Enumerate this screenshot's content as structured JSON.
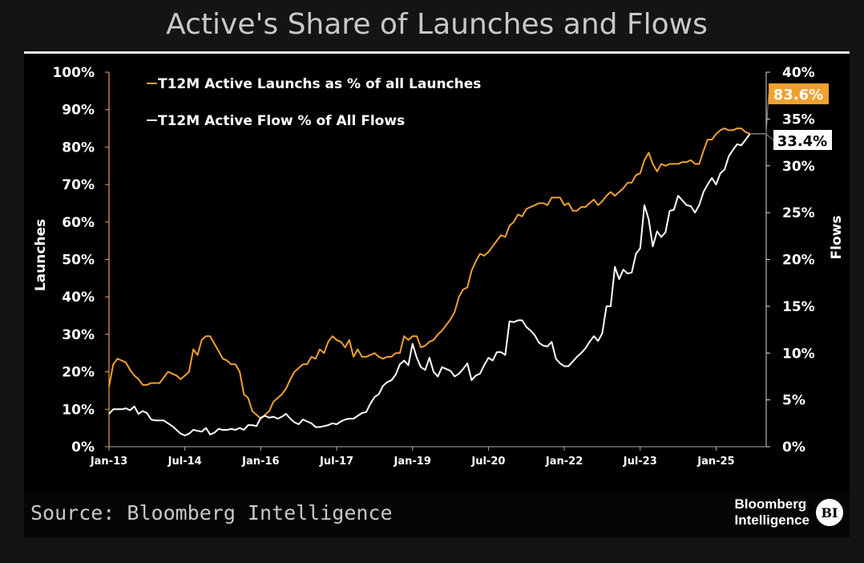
{
  "title": "Active's Share of Launches and Flows",
  "source": "Source: Bloomberg Intelligence",
  "logo": {
    "line1": "Bloomberg",
    "line2": "Intelligence",
    "badge": "BI"
  },
  "chart_data": {
    "type": "line",
    "title": "Active's Share of Launches and Flows",
    "left_axis": {
      "label": "Launches",
      "ylim": [
        0,
        100
      ],
      "ticks": [
        "0%",
        "10%",
        "20%",
        "30%",
        "40%",
        "50%",
        "60%",
        "70%",
        "80%",
        "90%",
        "100%"
      ]
    },
    "right_axis": {
      "label": "Flows",
      "ylim": [
        0,
        40
      ],
      "ticks": [
        "0%",
        "5%",
        "10%",
        "15%",
        "20%",
        "25%",
        "30%",
        "35%",
        "40%"
      ]
    },
    "x_ticks": [
      "Jan-13",
      "Jul-14",
      "Jan-16",
      "Jul-17",
      "Jan-19",
      "Jul-20",
      "Jan-22",
      "Jul-23",
      "Jan-25"
    ],
    "x_start": "2013-01",
    "x_frequency": "monthly",
    "grid": false,
    "legend_position": "top-left",
    "series": [
      {
        "name": "T12M Active Launchs as % of all Launches",
        "axis": "left",
        "color": "#f0a030",
        "last_label": "83.6%",
        "values": [
          16,
          22,
          23.5,
          23,
          22.5,
          20.5,
          19,
          18,
          16.5,
          16.5,
          17,
          17,
          17,
          18.5,
          20,
          19.5,
          19,
          18,
          19,
          20,
          26,
          24.5,
          28.5,
          29.5,
          29.5,
          27.5,
          25.5,
          23.5,
          23,
          22,
          22,
          20,
          14,
          13,
          9.5,
          8.5,
          7.5,
          8.5,
          9.5,
          12,
          13,
          14,
          15.5,
          18,
          20,
          21,
          22,
          22,
          24,
          23.5,
          26,
          25,
          28,
          29.5,
          28.5,
          28,
          26.5,
          28.5,
          24,
          26,
          24,
          24,
          24.5,
          25,
          24,
          23.5,
          24,
          24,
          25,
          25,
          29.5,
          28.5,
          29.5,
          29.5,
          26.5,
          27,
          28,
          28.5,
          30,
          31,
          32.5,
          34,
          36,
          40,
          42,
          42.5,
          47,
          49.5,
          51.5,
          51,
          52,
          53.5,
          55,
          56.5,
          56,
          59,
          60,
          62,
          61.5,
          63.5,
          64,
          64.5,
          65,
          65,
          64.5,
          66.5,
          66.5,
          66.5,
          64.5,
          65,
          63,
          63,
          64,
          64,
          65,
          66,
          64.5,
          65.5,
          67,
          68,
          67,
          68,
          69,
          70.5,
          70.5,
          72.5,
          73,
          76.5,
          78.5,
          75.5,
          73.5,
          75.5,
          75,
          75.5,
          75.5,
          75.5,
          76,
          76,
          76.5,
          75.5,
          75.5,
          79,
          82,
          82,
          83.5,
          84.5,
          85,
          84.5,
          84.5,
          85,
          85,
          84,
          83.6
        ]
      },
      {
        "name": "T12M Active Flow % of All Flows",
        "axis": "right",
        "color": "#ffffff",
        "last_label": "33.4%",
        "values": [
          3.5,
          4,
          4,
          4,
          4.1,
          3.9,
          4.3,
          3.5,
          3.8,
          3.6,
          2.9,
          2.8,
          2.8,
          2.8,
          2.5,
          2.2,
          1.8,
          1.4,
          1.2,
          1.4,
          1.8,
          1.7,
          1.6,
          2,
          1.3,
          1.5,
          1.9,
          1.8,
          1.8,
          1.9,
          1.8,
          2,
          1.8,
          2.3,
          2.3,
          2.2,
          3.1,
          3.3,
          3.1,
          3.2,
          3,
          3.2,
          3.5,
          3,
          2.6,
          2.4,
          2.9,
          2.7,
          2.5,
          2.1,
          2.1,
          2.2,
          2.3,
          2.5,
          2.4,
          2.7,
          2.9,
          3,
          3,
          3.3,
          3.6,
          3.7,
          4.6,
          5.3,
          5.6,
          6.5,
          6.9,
          7.1,
          7.7,
          8.8,
          9.2,
          8.7,
          11,
          9.5,
          8.5,
          8.2,
          9.5,
          8,
          7.5,
          8.5,
          8.3,
          8.1,
          7.5,
          7.8,
          8.3,
          8.9,
          7.1,
          7.6,
          7.8,
          8.7,
          9.5,
          9.2,
          10.1,
          10.1,
          9.8,
          13.4,
          13.3,
          13.5,
          13.5,
          12.8,
          12.4,
          11.9,
          11.1,
          10.8,
          10.7,
          11.2,
          9.4,
          8.9,
          8.6,
          8.6,
          9.1,
          9.6,
          10,
          10.5,
          11.2,
          11.8,
          11.3,
          12.1,
          15,
          15,
          19.2,
          17.9,
          18.9,
          18.5,
          18.6,
          20.6,
          21.2,
          25.8,
          24.3,
          21.4,
          23,
          22.4,
          22.9,
          25.2,
          25.3,
          26.8,
          26.3,
          25.8,
          25.7,
          25,
          25.8,
          27.2,
          28,
          28.7,
          28,
          29.2,
          29.6,
          31,
          31.7,
          32.3,
          32.2,
          32.8,
          33.4
        ]
      }
    ]
  }
}
